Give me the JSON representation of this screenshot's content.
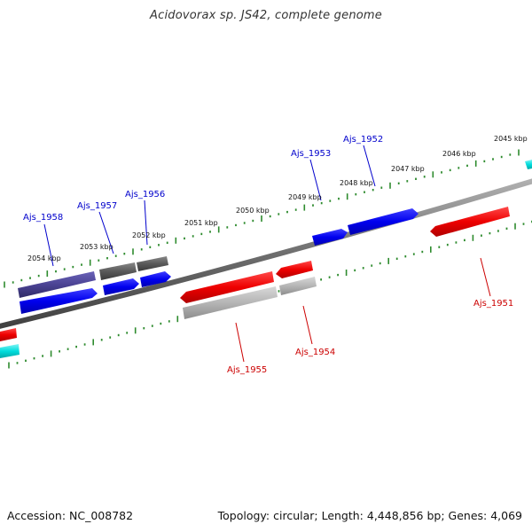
{
  "title": "Acidovorax sp. JS42, complete genome",
  "footer": {
    "accession": "Accession: NC_008782",
    "summary": "Topology: circular; Length: 4,448,856 bp; Genes: 4,069"
  },
  "colors": {
    "backbone": "#7a7a7a",
    "tick": "#2e8b2e",
    "forward_label": "#0000cc",
    "reverse_label": "#cc0000",
    "blue": "#0000ee",
    "red": "#ee0000",
    "dark_gray": "#555555",
    "light_gray": "#b0b0b0",
    "purple": "#4b4393",
    "cyan": "#00dddd"
  },
  "kbp_labels": [
    "2054 kbp",
    "2053 kbp",
    "2052 kbp",
    "2051 kbp",
    "2050 kbp",
    "2049 kbp",
    "2048 kbp",
    "2047 kbp",
    "2046 kbp",
    "2045 kbp"
  ],
  "gene_labels": {
    "forward": [
      "Ajs_1958",
      "Ajs_1957",
      "Ajs_1956",
      "Ajs_1953",
      "Ajs_1952"
    ],
    "reverse": [
      "Ajs_1955",
      "Ajs_1954",
      "Ajs_1951"
    ]
  }
}
